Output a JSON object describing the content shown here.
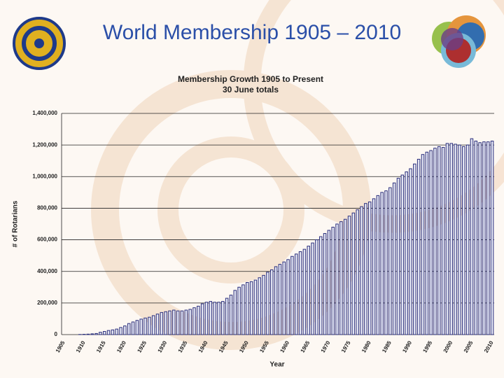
{
  "slide_title": "World Membership 1905 – 2010",
  "chart_data": {
    "type": "bar",
    "title": "Membership Growth 1905 to Present",
    "subtitle": "30 June totals",
    "x_label": "Year",
    "y_label": "# of Rotarians",
    "categories": [
      1905,
      null,
      null,
      null,
      null,
      1910,
      null,
      null,
      null,
      null,
      1915,
      null,
      null,
      null,
      null,
      1920,
      null,
      null,
      null,
      null,
      1925,
      null,
      null,
      null,
      null,
      1930,
      null,
      null,
      null,
      null,
      1935,
      null,
      null,
      null,
      null,
      1940,
      null,
      null,
      null,
      null,
      1945,
      null,
      null,
      null,
      null,
      1950,
      null,
      null,
      null,
      null,
      1955,
      null,
      null,
      null,
      null,
      1960,
      null,
      null,
      null,
      null,
      1965,
      null,
      null,
      null,
      null,
      1970,
      null,
      null,
      null,
      null,
      1975,
      null,
      null,
      null,
      null,
      1980,
      null,
      null,
      null,
      null,
      1985,
      null,
      null,
      null,
      null,
      1990,
      null,
      null,
      null,
      null,
      1995,
      null,
      null,
      null,
      null,
      2000,
      null,
      null,
      null,
      null,
      2005,
      null,
      null,
      null,
      null,
      2010
    ],
    "values": [
      0,
      0,
      0,
      0,
      1000,
      2000,
      3000,
      5000,
      7000,
      15000,
      20000,
      26000,
      30000,
      35000,
      45000,
      55000,
      70000,
      80000,
      90000,
      98000,
      105000,
      110000,
      120000,
      130000,
      140000,
      145000,
      150000,
      155000,
      150000,
      150000,
      155000,
      160000,
      170000,
      180000,
      195000,
      205000,
      210000,
      205000,
      205000,
      210000,
      230000,
      250000,
      280000,
      300000,
      315000,
      330000,
      335000,
      345000,
      360000,
      375000,
      395000,
      410000,
      430000,
      445000,
      460000,
      475000,
      495000,
      510000,
      525000,
      540000,
      560000,
      580000,
      600000,
      620000,
      640000,
      660000,
      680000,
      700000,
      715000,
      730000,
      750000,
      770000,
      790000,
      810000,
      830000,
      840000,
      860000,
      880000,
      900000,
      910000,
      930000,
      960000,
      990000,
      1010000,
      1030000,
      1050000,
      1080000,
      1110000,
      1140000,
      1155000,
      1165000,
      1180000,
      1190000,
      1185000,
      1210000,
      1210000,
      1205000,
      1200000,
      1190000,
      1200000,
      1240000,
      1225000,
      1215000,
      1220000,
      1220000,
      1225000
    ],
    "color": "#2b2f7c",
    "fill": "#e4e6f3",
    "ylim": [
      0,
      1400000
    ],
    "yticks": [
      0,
      {
        "value": 200000,
        "label": "200,000"
      },
      {
        "value": 400000,
        "label": "400,000"
      },
      {
        "value": 600000,
        "label": "600,000"
      },
      {
        "value": 800000,
        "label": "800,000"
      },
      {
        "value": 1000000,
        "label": "1,000,000"
      },
      {
        "value": 1200000,
        "label": "1,200,000"
      },
      {
        "value": 1400000,
        "label": "1,400,000"
      }
    ],
    "grid": true
  }
}
